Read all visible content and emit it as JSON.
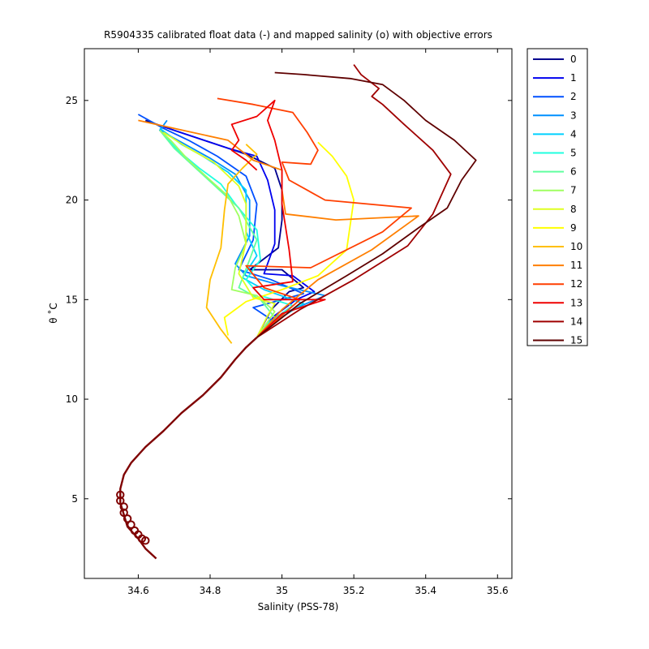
{
  "chart_data": {
    "type": "line",
    "title": "R5904335 calibrated float data (-) and mapped salinity (o) with objective errors",
    "xlabel": "Salinity (PSS-78)",
    "ylabel": "θ ˚C",
    "xlim": [
      34.45,
      35.64
    ],
    "ylim": [
      1.0,
      27.6
    ],
    "xticks": [
      34.6,
      34.8,
      35.0,
      35.2,
      35.4,
      35.6
    ],
    "xtick_labels": [
      "34.6",
      "34.8",
      "35",
      "35.2",
      "35.4",
      "35.6"
    ],
    "yticks": [
      5,
      10,
      15,
      20,
      25
    ],
    "ytick_labels": [
      "5",
      "10",
      "15",
      "20",
      "25"
    ],
    "grid": false,
    "legend_position": "outside-right",
    "deep_curve": [
      [
        34.65,
        2.0
      ],
      [
        34.62,
        2.5
      ],
      [
        34.6,
        3.0
      ],
      [
        34.57,
        3.6
      ],
      [
        34.56,
        4.2
      ],
      [
        34.55,
        4.8
      ],
      [
        34.55,
        5.5
      ],
      [
        34.56,
        6.2
      ],
      [
        34.58,
        6.8
      ],
      [
        34.62,
        7.6
      ],
      [
        34.67,
        8.4
      ],
      [
        34.72,
        9.3
      ],
      [
        34.78,
        10.2
      ],
      [
        34.83,
        11.1
      ],
      [
        34.87,
        12.0
      ],
      [
        34.9,
        12.6
      ],
      [
        34.93,
        13.1
      ]
    ],
    "mapped_salinity": [
      [
        34.55,
        5.2
      ],
      [
        34.55,
        4.9
      ],
      [
        34.56,
        4.6
      ],
      [
        34.56,
        4.3
      ],
      [
        34.57,
        4.0
      ],
      [
        34.58,
        3.7
      ],
      [
        34.59,
        3.4
      ],
      [
        34.6,
        3.2
      ],
      [
        34.61,
        3.0
      ],
      [
        34.62,
        2.9
      ]
    ],
    "series": [
      {
        "name": "0",
        "color": "#00008f",
        "points": [
          [
            34.93,
            13.1
          ],
          [
            34.97,
            14.5
          ],
          [
            35.02,
            15.4
          ],
          [
            35.06,
            15.6
          ],
          [
            35.0,
            16.5
          ],
          [
            34.91,
            16.5
          ],
          [
            34.99,
            17.6
          ],
          [
            35.0,
            19.0
          ],
          [
            35.0,
            20.5
          ],
          [
            34.98,
            21.6
          ],
          [
            34.9,
            22.3
          ],
          [
            34.8,
            22.9
          ],
          [
            34.7,
            23.5
          ],
          [
            34.62,
            24.0
          ]
        ]
      },
      {
        "name": "1",
        "color": "#0000ef",
        "points": [
          [
            34.93,
            13.1
          ],
          [
            34.98,
            14.2
          ],
          [
            35.04,
            15.0
          ],
          [
            35.09,
            15.4
          ],
          [
            35.03,
            16.2
          ],
          [
            34.95,
            16.3
          ],
          [
            34.98,
            17.8
          ],
          [
            34.98,
            19.5
          ],
          [
            34.96,
            21.0
          ],
          [
            34.93,
            22.2
          ],
          [
            34.85,
            22.6
          ],
          [
            34.75,
            23.2
          ],
          [
            34.65,
            23.8
          ]
        ]
      },
      {
        "name": "2",
        "color": "#0050ff",
        "points": [
          [
            34.93,
            13.1
          ],
          [
            34.97,
            14.0
          ],
          [
            34.92,
            14.6
          ],
          [
            35.06,
            15.3
          ],
          [
            34.97,
            16.0
          ],
          [
            34.88,
            16.5
          ],
          [
            34.92,
            18.0
          ],
          [
            34.93,
            19.8
          ],
          [
            34.9,
            21.2
          ],
          [
            34.82,
            22.2
          ],
          [
            34.74,
            23.0
          ],
          [
            34.67,
            23.6
          ],
          [
            34.6,
            24.3
          ]
        ]
      },
      {
        "name": "3",
        "color": "#0090ff",
        "points": [
          [
            34.93,
            13.1
          ],
          [
            34.99,
            14.2
          ],
          [
            35.12,
            15.2
          ],
          [
            35.0,
            15.7
          ],
          [
            34.9,
            16.2
          ],
          [
            34.87,
            16.8
          ],
          [
            34.91,
            18.2
          ],
          [
            34.91,
            20.0
          ],
          [
            34.87,
            21.3
          ],
          [
            34.8,
            22.1
          ],
          [
            34.72,
            22.9
          ],
          [
            34.66,
            23.5
          ],
          [
            34.68,
            24.0
          ]
        ]
      },
      {
        "name": "4",
        "color": "#00d0ff",
        "points": [
          [
            34.93,
            13.1
          ],
          [
            34.98,
            13.9
          ],
          [
            35.06,
            14.8
          ],
          [
            34.95,
            15.5
          ],
          [
            34.89,
            16.1
          ],
          [
            34.93,
            17.2
          ],
          [
            34.9,
            18.4
          ],
          [
            34.9,
            20.5
          ],
          [
            34.85,
            21.4
          ],
          [
            34.78,
            22.2
          ],
          [
            34.72,
            22.8
          ],
          [
            34.66,
            23.6
          ]
        ]
      },
      {
        "name": "5",
        "color": "#20ffdf",
        "points": [
          [
            34.93,
            13.1
          ],
          [
            34.96,
            13.8
          ],
          [
            35.03,
            14.7
          ],
          [
            34.94,
            15.2
          ],
          [
            34.9,
            16.0
          ],
          [
            34.94,
            17.0
          ],
          [
            34.93,
            18.5
          ],
          [
            34.87,
            19.8
          ],
          [
            34.83,
            20.8
          ],
          [
            34.77,
            21.6
          ],
          [
            34.71,
            22.5
          ],
          [
            34.66,
            23.5
          ]
        ]
      },
      {
        "name": "6",
        "color": "#60ff9f",
        "points": [
          [
            34.93,
            13.1
          ],
          [
            34.98,
            14.1
          ],
          [
            34.94,
            15.0
          ],
          [
            34.88,
            15.6
          ],
          [
            34.91,
            17.0
          ],
          [
            34.93,
            18.0
          ],
          [
            34.88,
            19.6
          ],
          [
            34.82,
            20.6
          ],
          [
            34.76,
            21.6
          ],
          [
            34.7,
            22.6
          ],
          [
            34.66,
            23.5
          ]
        ]
      },
      {
        "name": "7",
        "color": "#9fff60",
        "points": [
          [
            34.93,
            13.1
          ],
          [
            34.98,
            14.4
          ],
          [
            34.93,
            15.2
          ],
          [
            34.86,
            15.5
          ],
          [
            34.87,
            16.6
          ],
          [
            34.9,
            17.8
          ],
          [
            34.88,
            19.2
          ],
          [
            34.85,
            20.2
          ],
          [
            34.8,
            21.0
          ],
          [
            34.74,
            22.0
          ],
          [
            34.69,
            23.0
          ],
          [
            34.66,
            23.5
          ]
        ]
      },
      {
        "name": "8",
        "color": "#dfff20",
        "points": [
          [
            34.93,
            13.1
          ],
          [
            34.96,
            14.2
          ],
          [
            34.98,
            14.8
          ],
          [
            34.92,
            15.1
          ],
          [
            34.88,
            16.3
          ],
          [
            34.9,
            17.9
          ],
          [
            34.9,
            19.8
          ],
          [
            34.88,
            20.7
          ],
          [
            34.81,
            21.9
          ],
          [
            34.74,
            22.6
          ],
          [
            34.67,
            23.4
          ]
        ]
      },
      {
        "name": "9",
        "color": "#ffff00",
        "points": [
          [
            34.85,
            13.2
          ],
          [
            34.84,
            14.1
          ],
          [
            34.9,
            14.9
          ],
          [
            35.0,
            15.5
          ],
          [
            35.1,
            16.2
          ],
          [
            35.18,
            17.5
          ],
          [
            35.2,
            20.0
          ],
          [
            35.18,
            21.2
          ],
          [
            35.14,
            22.2
          ],
          [
            35.1,
            22.9
          ]
        ]
      },
      {
        "name": "10",
        "color": "#ffbf00",
        "points": [
          [
            34.86,
            12.8
          ],
          [
            34.83,
            13.5
          ],
          [
            34.79,
            14.6
          ],
          [
            34.8,
            16.0
          ],
          [
            34.83,
            17.6
          ],
          [
            34.84,
            19.5
          ],
          [
            34.85,
            20.8
          ],
          [
            34.89,
            21.6
          ],
          [
            34.93,
            22.3
          ],
          [
            34.9,
            22.8
          ]
        ]
      },
      {
        "name": "11",
        "color": "#ff7f00",
        "points": [
          [
            34.93,
            13.1
          ],
          [
            35.0,
            14.5
          ],
          [
            35.1,
            16.0
          ],
          [
            35.25,
            17.5
          ],
          [
            35.38,
            19.2
          ],
          [
            35.15,
            19.0
          ],
          [
            35.01,
            19.3
          ],
          [
            35.0,
            20.5
          ],
          [
            35.0,
            21.5
          ],
          [
            34.92,
            22.0
          ],
          [
            34.85,
            23.0
          ],
          [
            34.7,
            23.6
          ],
          [
            34.6,
            24.0
          ]
        ]
      },
      {
        "name": "12",
        "color": "#ff3f00",
        "points": [
          [
            34.93,
            13.1
          ],
          [
            35.0,
            14.2
          ],
          [
            35.05,
            15.0
          ],
          [
            34.95,
            15.6
          ],
          [
            34.9,
            16.7
          ],
          [
            35.08,
            16.6
          ],
          [
            35.28,
            18.4
          ],
          [
            35.36,
            19.6
          ],
          [
            35.12,
            20.0
          ],
          [
            35.02,
            21.0
          ],
          [
            35.0,
            21.9
          ],
          [
            35.08,
            21.8
          ],
          [
            35.1,
            22.5
          ],
          [
            35.07,
            23.4
          ],
          [
            35.03,
            24.4
          ],
          [
            34.92,
            24.8
          ],
          [
            34.82,
            25.1
          ]
        ]
      },
      {
        "name": "13",
        "color": "#ef0000",
        "points": [
          [
            34.93,
            13.1
          ],
          [
            35.0,
            14.3
          ],
          [
            35.12,
            15.0
          ],
          [
            34.95,
            15.0
          ],
          [
            34.92,
            15.6
          ],
          [
            35.03,
            15.9
          ],
          [
            35.02,
            17.5
          ],
          [
            35.0,
            19.8
          ],
          [
            35.0,
            21.5
          ],
          [
            34.98,
            23.0
          ],
          [
            34.96,
            24.0
          ],
          [
            34.98,
            25.0
          ],
          [
            34.93,
            24.2
          ],
          [
            34.86,
            23.8
          ],
          [
            34.88,
            23.0
          ],
          [
            34.86,
            22.5
          ],
          [
            34.9,
            22.0
          ],
          [
            34.93,
            21.5
          ]
        ]
      },
      {
        "name": "14",
        "color": "#9f0000",
        "points": [
          [
            34.93,
            13.1
          ],
          [
            35.05,
            14.5
          ],
          [
            35.2,
            16.0
          ],
          [
            35.35,
            17.7
          ],
          [
            35.42,
            19.3
          ],
          [
            35.47,
            21.3
          ],
          [
            35.42,
            22.5
          ],
          [
            35.34,
            23.8
          ],
          [
            35.28,
            24.8
          ],
          [
            35.25,
            25.2
          ],
          [
            35.27,
            25.6
          ],
          [
            35.22,
            26.3
          ],
          [
            35.2,
            26.8
          ]
        ]
      },
      {
        "name": "15",
        "color": "#5f0000",
        "points": [
          [
            34.93,
            13.1
          ],
          [
            35.05,
            14.8
          ],
          [
            35.18,
            16.2
          ],
          [
            35.28,
            17.3
          ],
          [
            35.38,
            18.6
          ],
          [
            35.46,
            19.6
          ],
          [
            35.5,
            21.0
          ],
          [
            35.54,
            22.0
          ],
          [
            35.48,
            23.0
          ],
          [
            35.4,
            24.0
          ],
          [
            35.34,
            25.0
          ],
          [
            35.28,
            25.8
          ],
          [
            35.19,
            26.1
          ],
          [
            35.06,
            26.3
          ],
          [
            34.98,
            26.4
          ]
        ]
      }
    ]
  }
}
